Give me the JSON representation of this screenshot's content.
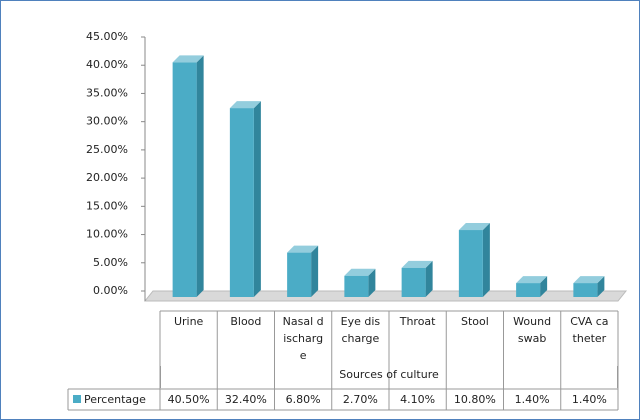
{
  "chart_data": {
    "type": "bar",
    "categories": [
      "Urine",
      "Blood",
      "Nasal discharge",
      "Eye discharge",
      "Throat",
      "Stool",
      "Wound swab",
      "CVA catheter"
    ],
    "series": [
      {
        "name": "Percentage",
        "color": "#4bacc6",
        "values": [
          40.5,
          32.4,
          6.8,
          2.7,
          4.1,
          10.8,
          1.4,
          1.4
        ],
        "value_labels": [
          "40.50%",
          "32.40%",
          "6.80%",
          "2.70%",
          "4.10%",
          "10.80%",
          "1.40%",
          "1.40%"
        ]
      }
    ],
    "x_label": "Sources of culture",
    "ylim": [
      0,
      45
    ],
    "yticks": [
      {
        "value": 0,
        "label": "0.00%"
      },
      {
        "value": 5,
        "label": "5.00%"
      },
      {
        "value": 10,
        "label": "10.00%"
      },
      {
        "value": 15,
        "label": "15.00%"
      },
      {
        "value": 20,
        "label": "20.00%"
      },
      {
        "value": 25,
        "label": "25.00%"
      },
      {
        "value": 30,
        "label": "30.00%"
      },
      {
        "value": 35,
        "label": "35.00%"
      },
      {
        "value": 40,
        "label": "40.00%"
      },
      {
        "value": 45,
        "label": "45.00%"
      }
    ],
    "data_table": true
  }
}
